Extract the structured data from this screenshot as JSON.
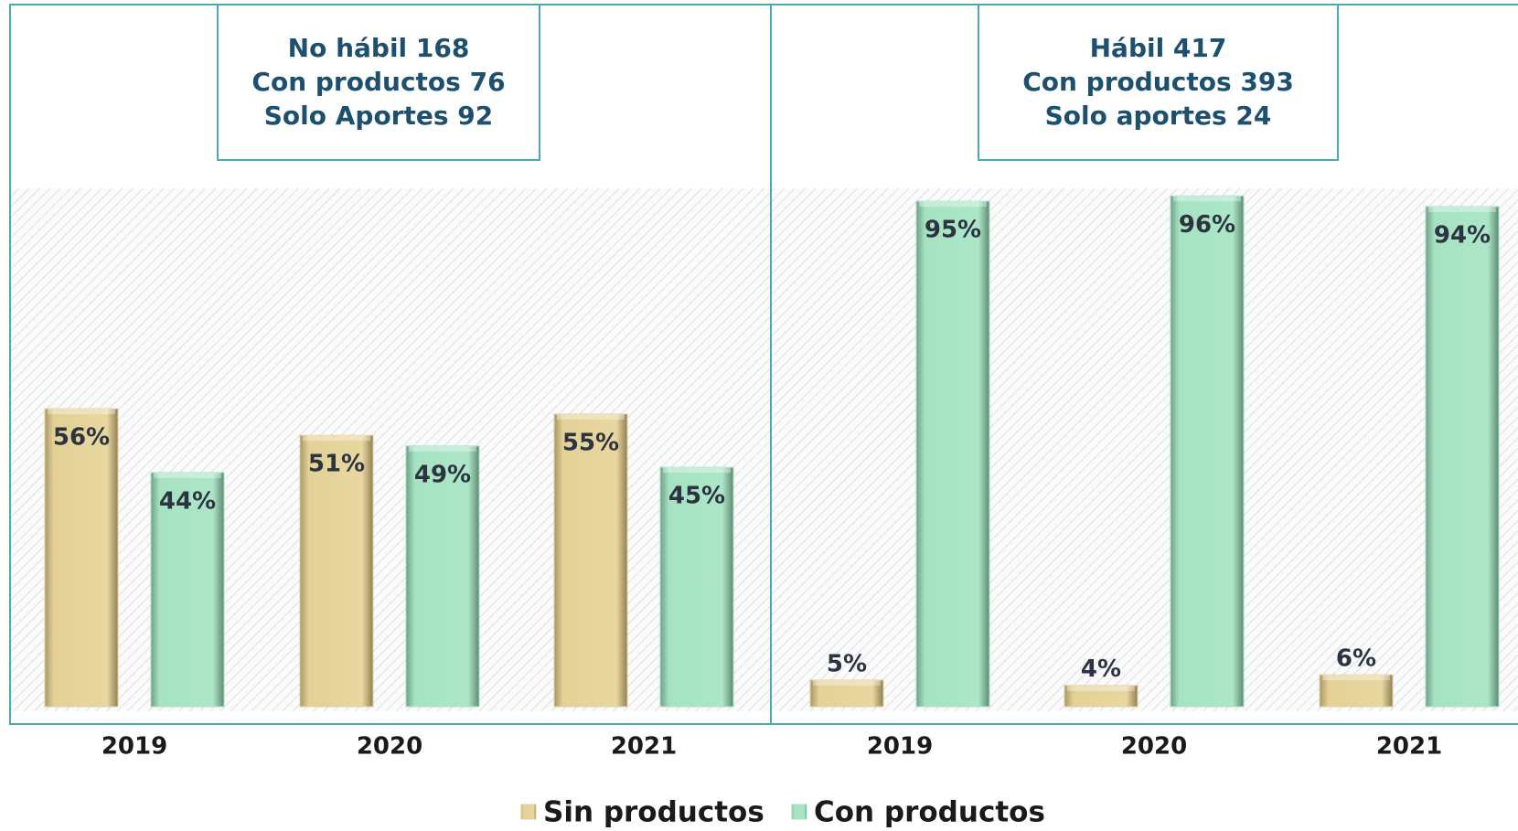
{
  "chart_data": {
    "type": "bar",
    "series": [
      {
        "name": "Sin productos",
        "color": "#e3d196"
      },
      {
        "name": "Con productos",
        "color": "#a6e3c3"
      }
    ],
    "ylim": [
      0,
      100
    ],
    "panels": [
      {
        "annotation": [
          "No hábil 168",
          "Con productos 76",
          "Solo Aportes 92"
        ],
        "categories": [
          "2019",
          "2020",
          "2021"
        ],
        "series": [
          {
            "values": [
              56,
              51,
              55
            ],
            "value_labels": [
              "56%",
              "51%",
              "55%"
            ]
          },
          {
            "values": [
              44,
              49,
              45
            ],
            "value_labels": [
              "44%",
              "49%",
              "45%"
            ]
          }
        ]
      },
      {
        "annotation": [
          "Hábil 417",
          "Con productos 393",
          "Solo aportes 24"
        ],
        "categories": [
          "2019",
          "2020",
          "2021"
        ],
        "series": [
          {
            "values": [
              5,
              4,
              6
            ],
            "value_labels": [
              "5%",
              "4%",
              "6%"
            ]
          },
          {
            "values": [
              95,
              96,
              94
            ],
            "value_labels": [
              "95%",
              "96%",
              "94%"
            ]
          }
        ]
      }
    ]
  }
}
